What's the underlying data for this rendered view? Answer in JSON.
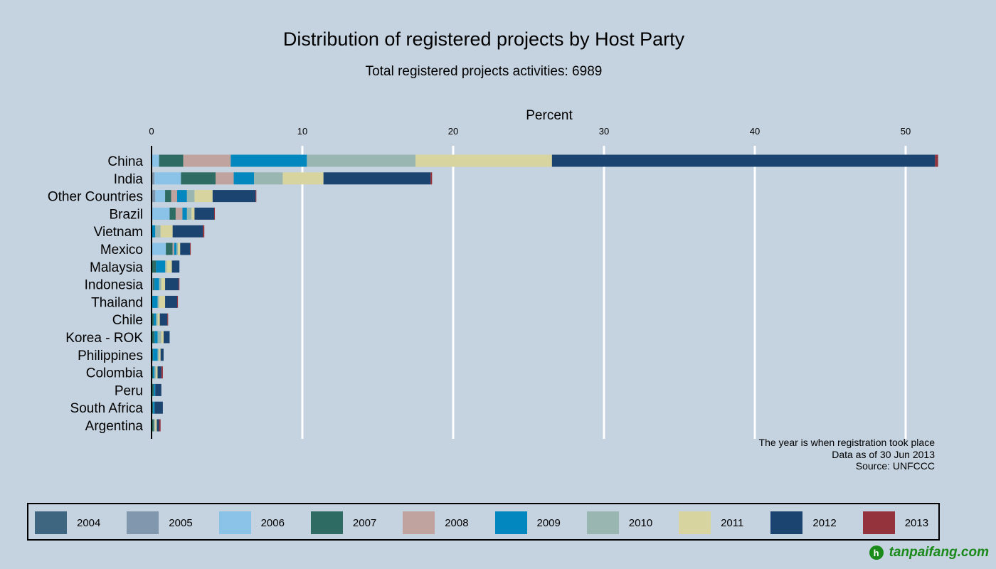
{
  "chart_data": {
    "type": "bar",
    "orientation": "horizontal",
    "stacked": true,
    "title": "Distribution of registered projects by Host Party",
    "subtitle": "Total registered projects activities: 6989",
    "xlabel": "Percent",
    "ylabel": "",
    "xlim": [
      0,
      53
    ],
    "xticks": [
      0,
      10,
      20,
      30,
      40,
      50
    ],
    "grid": true,
    "legend_position": "bottom",
    "categories": [
      "China",
      "India",
      "Other Countries",
      "Brazil",
      "Vietnam",
      "Mexico",
      "Malaysia",
      "Indonesia",
      "Thailand",
      "Chile",
      "Korea - ROK",
      "Philippines",
      "Colombia",
      "Peru",
      "South Africa",
      "Argentina"
    ],
    "series": [
      {
        "name": "2004",
        "color": "#3f6680",
        "values": [
          0,
          0,
          0,
          0,
          0,
          0,
          0,
          0,
          0,
          0,
          0,
          0,
          0,
          0,
          0,
          0
        ]
      },
      {
        "name": "2005",
        "color": "#8097ad",
        "values": [
          0,
          0.2,
          0.25,
          0,
          0,
          0,
          0,
          0.1,
          0,
          0,
          0,
          0,
          0,
          0,
          0,
          0
        ]
      },
      {
        "name": "2006",
        "color": "#8bc2e8",
        "values": [
          0.5,
          1.75,
          0.65,
          1.2,
          0,
          0.95,
          0,
          0,
          0,
          0,
          0,
          0,
          0,
          0,
          0,
          0
        ]
      },
      {
        "name": "2007",
        "color": "#2e6b63",
        "values": [
          1.6,
          2.3,
          0.4,
          0.4,
          0,
          0.45,
          0.3,
          0.1,
          0.05,
          0.15,
          0.2,
          0.1,
          0.1,
          0.15,
          0.1,
          0.15
        ]
      },
      {
        "name": "2008",
        "color": "#c0a29e",
        "values": [
          3.15,
          1.2,
          0.4,
          0.45,
          0,
          0.1,
          0,
          0,
          0,
          0,
          0,
          0,
          0,
          0,
          0,
          0
        ]
      },
      {
        "name": "2009",
        "color": "#0288be",
        "values": [
          5.05,
          1.35,
          0.65,
          0.3,
          0.25,
          0.15,
          0.6,
          0.3,
          0.35,
          0.15,
          0.2,
          0.3,
          0.1,
          0.1,
          0.1,
          0
        ]
      },
      {
        "name": "2010",
        "color": "#99b6b0",
        "values": [
          7.2,
          1.9,
          0.5,
          0.3,
          0.35,
          0.1,
          0.1,
          0.15,
          0.1,
          0.1,
          0.25,
          0.1,
          0.1,
          0,
          0,
          0.1
        ]
      },
      {
        "name": "2011",
        "color": "#d8d49f",
        "values": [
          9.05,
          2.7,
          1.2,
          0.2,
          0.8,
          0.15,
          0.35,
          0.25,
          0.4,
          0.15,
          0.15,
          0.1,
          0.1,
          0,
          0,
          0.1
        ]
      },
      {
        "name": "2012",
        "color": "#1b4570",
        "values": [
          25.4,
          7.1,
          2.85,
          1.3,
          2.0,
          0.65,
          0.5,
          0.9,
          0.8,
          0.5,
          0.4,
          0.2,
          0.25,
          0.4,
          0.55,
          0.15
        ]
      },
      {
        "name": "2013",
        "color": "#95333c",
        "values": [
          0.2,
          0.1,
          0.05,
          0.05,
          0.1,
          0.05,
          0,
          0.05,
          0.05,
          0.05,
          0,
          0,
          0.1,
          0,
          0,
          0.1
        ]
      }
    ],
    "notes": [
      "The year is when registration took place",
      "Data as of 30 Jun 2013",
      "Source: UNFCCC"
    ]
  },
  "watermark": "tanpaifang.com"
}
